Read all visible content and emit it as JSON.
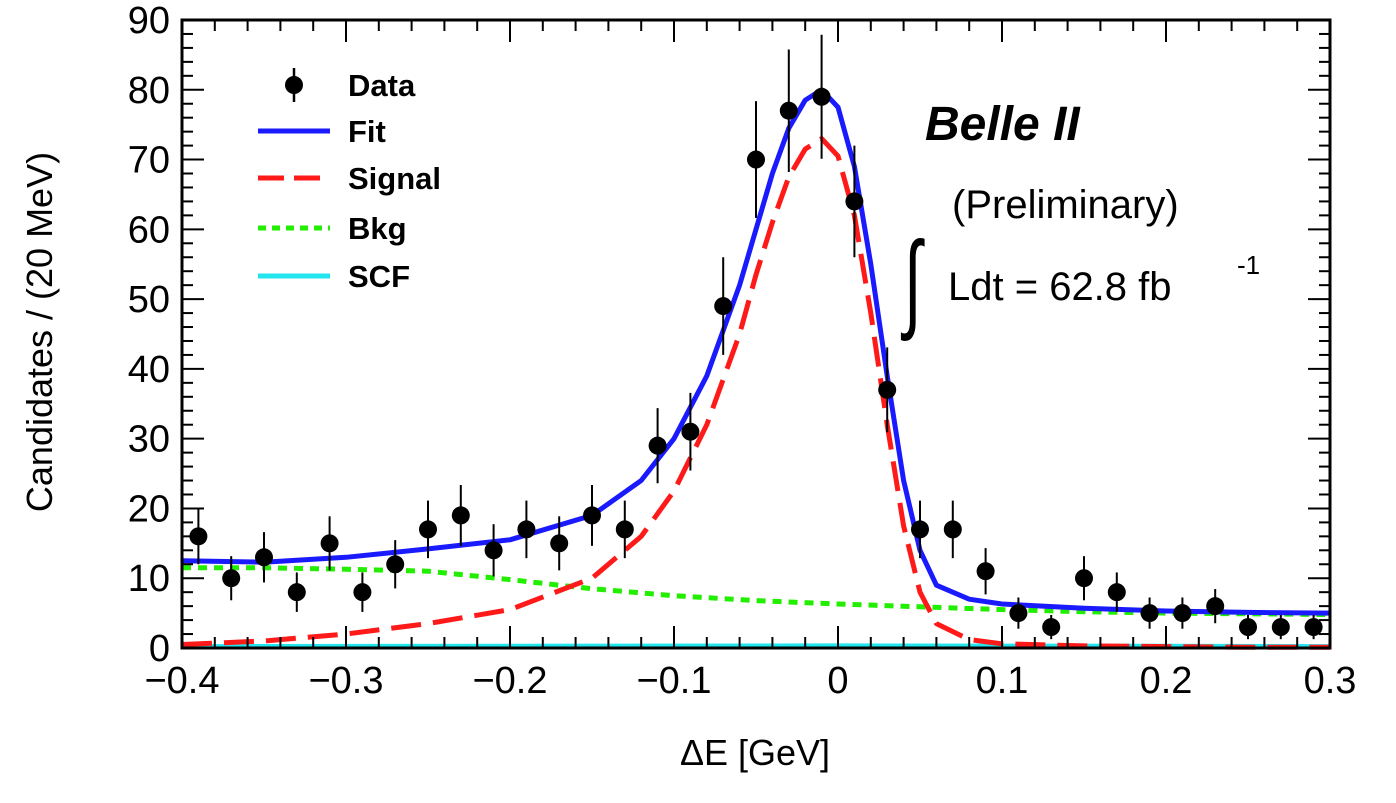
{
  "chart_data": {
    "type": "scatter",
    "title": "",
    "xlabel": "ΔE [GeV]",
    "ylabel": "Candidates / (20 MeV)",
    "xlim": [
      -0.4,
      0.3
    ],
    "ylim": [
      0,
      90
    ],
    "x_ticks": [
      -0.4,
      -0.3,
      -0.2,
      -0.1,
      0,
      0.1,
      0.2,
      0.3
    ],
    "x_tick_labels": [
      "−0.4",
      "−0.3",
      "−0.2",
      "−0.1",
      "0",
      "0.1",
      "0.2",
      "0.3"
    ],
    "y_ticks": [
      0,
      10,
      20,
      30,
      40,
      50,
      60,
      70,
      80,
      90
    ],
    "y_tick_labels": [
      "0",
      "10",
      "20",
      "30",
      "40",
      "50",
      "60",
      "70",
      "80",
      "90"
    ],
    "grid": false,
    "legend_position": "top-left",
    "legend": [
      {
        "label": "Data",
        "style": "marker",
        "color": "#000000"
      },
      {
        "label": "Fit",
        "style": "solid",
        "color": "#1a1aff"
      },
      {
        "label": "Signal",
        "style": "dashed",
        "color": "#ff1a1a"
      },
      {
        "label": "Bkg",
        "style": "dotted",
        "color": "#22ee00"
      },
      {
        "label": "SCF",
        "style": "solid",
        "color": "#22e5ee"
      }
    ],
    "annotations": {
      "experiment": "Belle II",
      "status": "(Preliminary)",
      "integral_symbol": "∫",
      "lumi_text": "Ldt = 62.8 fb",
      "lumi_superscript": "-1"
    },
    "series": [
      {
        "name": "Data",
        "kind": "points_with_errors",
        "color": "#000000",
        "x": [
          -0.39,
          -0.37,
          -0.35,
          -0.33,
          -0.31,
          -0.29,
          -0.27,
          -0.25,
          -0.23,
          -0.21,
          -0.19,
          -0.17,
          -0.15,
          -0.13,
          -0.11,
          -0.09,
          -0.07,
          -0.05,
          -0.03,
          -0.01,
          0.01,
          0.03,
          0.05,
          0.07,
          0.09,
          0.11,
          0.13,
          0.15,
          0.17,
          0.19,
          0.21,
          0.23,
          0.25,
          0.27,
          0.29
        ],
        "y": [
          16,
          10,
          13,
          8,
          15,
          8,
          12,
          17,
          19,
          14,
          17,
          15,
          19,
          17,
          29,
          31,
          49,
          70,
          77,
          79,
          64,
          37,
          17,
          17,
          11,
          5,
          3,
          10,
          8,
          5,
          5,
          6,
          3,
          3,
          3
        ]
      },
      {
        "name": "Fit",
        "kind": "curve",
        "color": "#1a1aff",
        "style": "solid",
        "x": [
          -0.4,
          -0.35,
          -0.3,
          -0.25,
          -0.2,
          -0.15,
          -0.12,
          -0.1,
          -0.08,
          -0.06,
          -0.05,
          -0.04,
          -0.03,
          -0.02,
          -0.01,
          0.0,
          0.01,
          0.02,
          0.03,
          0.04,
          0.05,
          0.06,
          0.08,
          0.1,
          0.15,
          0.2,
          0.25,
          0.3
        ],
        "y": [
          12.5,
          12.3,
          13.0,
          14.2,
          15.5,
          19.0,
          24.0,
          30.0,
          39.0,
          52.0,
          60.0,
          68.0,
          74.5,
          78.5,
          80.0,
          77.5,
          69.0,
          55.0,
          39.0,
          24.0,
          14.0,
          9.0,
          7.0,
          6.3,
          5.7,
          5.3,
          5.1,
          5.0
        ]
      },
      {
        "name": "Signal",
        "kind": "curve",
        "color": "#ff1a1a",
        "style": "dashed",
        "x": [
          -0.4,
          -0.35,
          -0.3,
          -0.25,
          -0.2,
          -0.15,
          -0.12,
          -0.1,
          -0.08,
          -0.06,
          -0.05,
          -0.04,
          -0.03,
          -0.02,
          -0.01,
          0.0,
          0.01,
          0.02,
          0.03,
          0.04,
          0.05,
          0.06,
          0.08,
          0.1,
          0.15,
          0.2,
          0.25,
          0.3
        ],
        "y": [
          0.5,
          1.0,
          2.0,
          3.5,
          5.5,
          10.0,
          16.0,
          22.5,
          32.0,
          45.0,
          53.5,
          61.0,
          67.5,
          71.5,
          73.0,
          70.5,
          62.0,
          48.0,
          32.0,
          17.5,
          8.0,
          3.5,
          1.2,
          0.6,
          0.3,
          0.2,
          0.1,
          0.1
        ]
      },
      {
        "name": "Bkg",
        "kind": "curve",
        "color": "#22ee00",
        "style": "dotted",
        "x": [
          -0.4,
          -0.35,
          -0.3,
          -0.25,
          -0.2,
          -0.17,
          -0.15,
          -0.1,
          -0.05,
          0.0,
          0.05,
          0.1,
          0.15,
          0.2,
          0.25,
          0.3
        ],
        "y": [
          11.5,
          11.5,
          11.3,
          11.0,
          9.8,
          9.0,
          8.5,
          7.5,
          6.8,
          6.3,
          5.9,
          5.5,
          5.2,
          5.0,
          4.9,
          4.8
        ]
      },
      {
        "name": "SCF",
        "kind": "curve",
        "color": "#22e5ee",
        "style": "solid",
        "x": [
          -0.4,
          -0.2,
          0.0,
          0.2,
          0.3
        ],
        "y": [
          0.2,
          0.25,
          0.3,
          0.25,
          0.2
        ]
      }
    ]
  }
}
